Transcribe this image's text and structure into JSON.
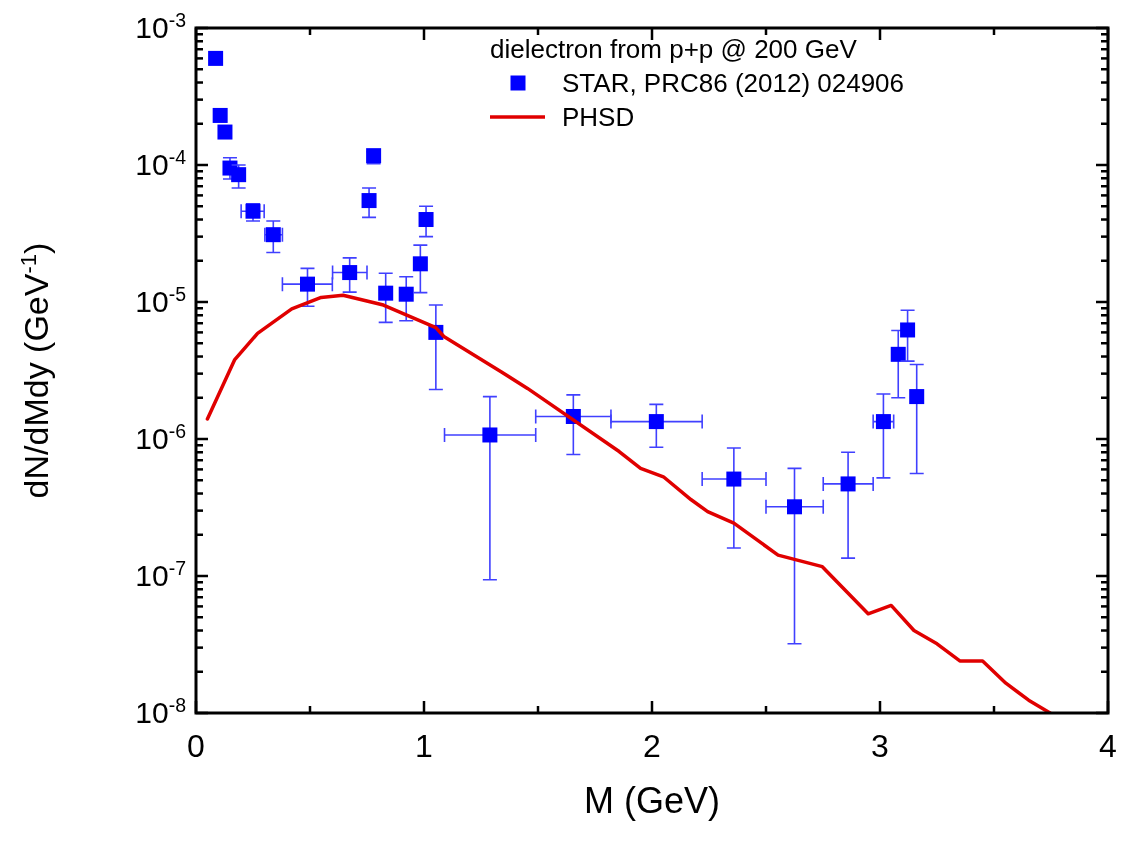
{
  "chart_data": {
    "type": "scatter",
    "xlabel": "M (GeV)",
    "ylabel": "dN/dMdy (GeV$^{-1}$)",
    "legend_title": "dielectron from p+p @ 200 GeV",
    "legend": "top right",
    "log": "y",
    "grid": false,
    "xlim": [
      0,
      4
    ],
    "ylim": [
      1e-08,
      0.001
    ],
    "xticks": [
      0,
      {
        "value": 0.5,
        "label": null
      },
      1,
      {
        "value": 1.5,
        "label": null
      },
      2,
      {
        "value": 2.5,
        "label": null
      },
      3,
      {
        "value": 3.5,
        "label": null
      },
      4
    ],
    "yticks": [
      {
        "value": 1e-08,
        "label": "10$^{-8}$"
      },
      {
        "value": 2e-08,
        "label": null
      },
      {
        "value": 3e-08,
        "label": null
      },
      {
        "value": 4e-08,
        "label": null
      },
      {
        "value": 5e-08,
        "label": null
      },
      {
        "value": 6e-08,
        "label": null
      },
      {
        "value": 7e-08,
        "label": null
      },
      {
        "value": 8e-08,
        "label": null
      },
      {
        "value": 9e-08,
        "label": null
      },
      {
        "value": 1e-07,
        "label": "10$^{-7}$"
      },
      {
        "value": 2e-07,
        "label": null
      },
      {
        "value": 3e-07,
        "label": null
      },
      {
        "value": 4e-07,
        "label": null
      },
      {
        "value": 5e-07,
        "label": null
      },
      {
        "value": 6e-07,
        "label": null
      },
      {
        "value": 7e-07,
        "label": null
      },
      {
        "value": 8e-07,
        "label": null
      },
      {
        "value": 9e-07,
        "label": null
      },
      {
        "value": 1e-06,
        "label": "10$^{-6}$"
      },
      {
        "value": 2e-06,
        "label": null
      },
      {
        "value": 3e-06,
        "label": null
      },
      {
        "value": 4e-06,
        "label": null
      },
      {
        "value": 5e-06,
        "label": null
      },
      {
        "value": 6e-06,
        "label": null
      },
      {
        "value": 7e-06,
        "label": null
      },
      {
        "value": 8e-06,
        "label": null
      },
      {
        "value": 9e-06,
        "label": null
      },
      {
        "value": 1e-05,
        "label": "10$^{-5}$"
      },
      {
        "value": 2e-05,
        "label": null
      },
      {
        "value": 3e-05,
        "label": null
      },
      {
        "value": 4e-05,
        "label": null
      },
      {
        "value": 5e-05,
        "label": null
      },
      {
        "value": 6e-05,
        "label": null
      },
      {
        "value": 7e-05,
        "label": null
      },
      {
        "value": 8e-05,
        "label": null
      },
      {
        "value": 9e-05,
        "label": null
      },
      {
        "value": 0.0001,
        "label": "10$^{-4}$"
      },
      {
        "value": 0.0002,
        "label": null
      },
      {
        "value": 0.0003,
        "label": null
      },
      {
        "value": 0.0004,
        "label": null
      },
      {
        "value": 0.0005,
        "label": null
      },
      {
        "value": 0.0006,
        "label": null
      },
      {
        "value": 0.0007,
        "label": null
      },
      {
        "value": 0.0008,
        "label": null
      },
      {
        "value": 0.0009,
        "label": null
      },
      {
        "value": 0.001,
        "label": "10$^{-3}$"
      }
    ],
    "series": [
      {
        "name": "STAR, PRC86 (2012) 024906",
        "marker": "square",
        "color": "#0000ff",
        "x": [
          0.086,
          0.106,
          0.127,
          0.149,
          0.187,
          0.25,
          0.339,
          0.489,
          0.674,
          0.759,
          0.779,
          0.832,
          0.922,
          0.984,
          1.009,
          1.052,
          1.289,
          1.655,
          2.019,
          2.359,
          2.625,
          2.86,
          3.015,
          3.08,
          3.121,
          3.161
        ],
        "values": [
          0.0006,
          0.00023,
          0.000174,
          9.5e-05,
          8.5e-05,
          4.6e-05,
          3.1e-05,
          1.35e-05,
          1.64e-05,
          5.5e-05,
          0.000117,
          1.16e-05,
          1.14e-05,
          1.9e-05,
          4e-05,
          6e-06,
          1.07e-06,
          1.46e-06,
          1.34e-06,
          5.1e-07,
          3.2e-07,
          4.7e-07,
          1.34e-06,
          4.15e-06,
          6.25e-06,
          2.04e-06
        ],
        "errors": [
          null,
          null,
          null,
          [
            7.9e-05,
            0.000113
          ],
          [
            6.8e-05,
            0.0001
          ],
          [
            3.9e-05,
            5.2e-05
          ],
          [
            2.3e-05,
            3.9e-05
          ],
          [
            9.3e-06,
            1.76e-05
          ],
          [
            1.18e-05,
            2.1e-05
          ],
          [
            4.15e-05,
            6.8e-05
          ],
          [
            0.000102,
            0.000125
          ],
          [
            7.1e-06,
            1.62e-05
          ],
          [
            7.3e-06,
            1.53e-05
          ],
          [
            1.17e-05,
            2.6e-05
          ],
          [
            3e-05,
            5e-05
          ],
          [
            2.3e-06,
            9.5e-06
          ],
          [
            9.4e-08,
            2.04e-06
          ],
          [
            7.7e-07,
            2.1e-06
          ],
          [
            8.7e-07,
            1.79e-06
          ],
          [
            1.6e-07,
            8.6e-07
          ],
          [
            3.2e-08,
            6.1e-07
          ],
          [
            1.35e-07,
            8e-07
          ],
          [
            5.2e-07,
            2.13e-06
          ],
          [
            2e-06,
            6.2e-06
          ],
          [
            3.7e-06,
            8.7e-06
          ],
          [
            5.6e-07,
            3.5e-06
          ]
        ],
        "xerrors": [
          null,
          null,
          null,
          null,
          null,
          [
            0.198,
            0.299
          ],
          [
            0.302,
            0.379
          ],
          [
            0.379,
            0.598
          ],
          [
            0.599,
            0.75
          ],
          null,
          null,
          null,
          null,
          null,
          null,
          null,
          [
            1.09,
            1.49
          ],
          [
            1.49,
            1.82
          ],
          [
            1.82,
            2.22
          ],
          [
            2.22,
            2.5
          ],
          [
            2.5,
            2.751
          ],
          [
            2.751,
            2.97
          ],
          [
            2.97,
            3.06
          ],
          null,
          null,
          null
        ]
      },
      {
        "name": "PHSD",
        "type": "line",
        "color": "#e00000",
        "x": [
          0.05,
          0.17,
          0.27,
          0.42,
          0.549,
          0.645,
          0.822,
          1.052,
          1.087,
          1.338,
          1.454,
          1.856,
          1.95,
          2.05,
          2.172,
          2.244,
          2.359,
          2.553,
          2.747,
          2.948,
          3.049,
          3.149,
          3.25,
          3.35,
          3.45,
          3.552,
          3.652,
          3.746
        ],
        "values": [
          1.4e-06,
          3.8e-06,
          5.9e-06,
          8.9e-06,
          1.08e-05,
          1.12e-05,
          9.5e-06,
          6.5e-06,
          5.6e-06,
          3.1e-06,
          2.34e-06,
          8.1e-07,
          6.1e-07,
          5.3e-07,
          3.6e-07,
          2.95e-07,
          2.43e-07,
          1.42e-07,
          1.17e-07,
          5.3e-08,
          6.1e-08,
          4e-08,
          3.2e-08,
          2.4e-08,
          2.4e-08,
          1.65e-08,
          1.24e-08,
          1e-08
        ]
      }
    ]
  }
}
